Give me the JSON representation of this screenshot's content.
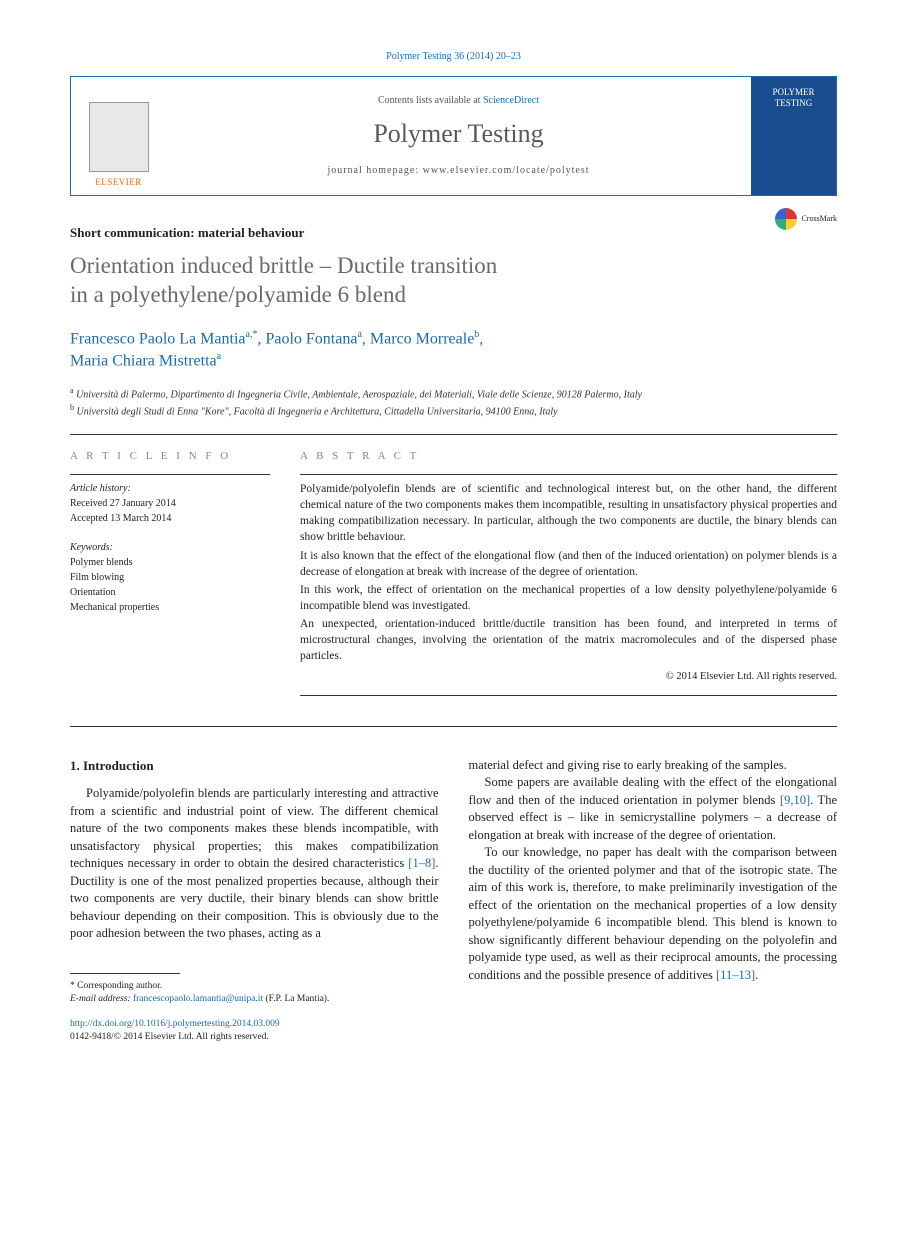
{
  "journal_ref": "Polymer Testing 36 (2014) 20–23",
  "masthead": {
    "publisher": "ELSEVIER",
    "contents_prefix": "Contents lists available at ",
    "contents_link": "ScienceDirect",
    "journal_name": "Polymer Testing",
    "homepage": "journal homepage: www.elsevier.com/locate/polytest",
    "cover_label": "POLYMER TESTING"
  },
  "section_tag": "Short communication: material behaviour",
  "title_line1": "Orientation induced brittle – Ductile transition",
  "title_line2": "in a polyethylene/polyamide 6 blend",
  "crossmark": "CrossMark",
  "authors": {
    "a1": "Francesco Paolo La Mantia",
    "a1_sup": "a,*",
    "a2": "Paolo Fontana",
    "a2_sup": "a",
    "a3": "Marco Morreale",
    "a3_sup": "b",
    "a4": "Maria Chiara Mistretta",
    "a4_sup": "a"
  },
  "affil": {
    "a": "Università di Palermo, Dipartimento di Ingegneria Civile, Ambientale, Aerospaziale, dei Materiali, Viale delle Scienze, 90128 Palermo, Italy",
    "b": "Università degli Studi di Enna \"Kore\", Facoltà di Ingegneria e Architettura, Cittadella Universitaria, 94100 Enna, Italy"
  },
  "info": {
    "heading": "A R T I C L E   I N F O",
    "history_label": "Article history:",
    "received": "Received 27 January 2014",
    "accepted": "Accepted 13 March 2014",
    "keywords_label": "Keywords:",
    "k1": "Polymer blends",
    "k2": "Film blowing",
    "k3": "Orientation",
    "k4": "Mechanical properties"
  },
  "abstract": {
    "heading": "A B S T R A C T",
    "p1": "Polyamide/polyolefin blends are of scientific and technological interest but, on the other hand, the different chemical nature of the two components makes them incompatible, resulting in unsatisfactory physical properties and making compatibilization necessary. In particular, although the two components are ductile, the binary blends can show brittle behaviour.",
    "p2": "It is also known that the effect of the elongational flow (and then of the induced orientation) on polymer blends is a decrease of elongation at break with increase of the degree of orientation.",
    "p3": "In this work, the effect of orientation on the mechanical properties of a low density polyethylene/polyamide 6 incompatible blend was investigated.",
    "p4": "An unexpected, orientation-induced brittle/ductile transition has been found, and interpreted in terms of microstructural changes, involving the orientation of the matrix macromolecules and of the dispersed phase particles.",
    "copyright": "© 2014 Elsevier Ltd. All rights reserved."
  },
  "body": {
    "intro_heading": "1. Introduction",
    "col1_p1": "Polyamide/polyolefin blends are particularly interesting and attractive from a scientific and industrial point of view. The different chemical nature of the two components makes these blends incompatible, with unsatisfactory physical properties; this makes compatibilization techniques necessary in order to obtain the desired characteristics ",
    "col1_cite1": "[1–8]",
    "col1_p1b": ". Ductility is one of the most penalized properties because, although their two components are very ductile, their binary blends can show brittle behaviour depending on their composition. This is obviously due to the poor adhesion between the two phases, acting as a",
    "col2_p1": "material defect and giving rise to early breaking of the samples.",
    "col2_p2a": "Some papers are available dealing with the effect of the elongational flow and then of the induced orientation in polymer blends ",
    "col2_cite1": "[9,10]",
    "col2_p2b": ". The observed effect is – like in semicrystalline polymers – a decrease of elongation at break with increase of the degree of orientation.",
    "col2_p3a": "To our knowledge, no paper has dealt with the comparison between the ductility of the oriented polymer and that of the isotropic state. The aim of this work is, therefore, to make preliminarily investigation of the effect of the orientation on the mechanical properties of a low density polyethylene/polyamide 6 incompatible blend. This blend is known to show significantly different behaviour depending on the polyolefin and polyamide type used, as well as their reciprocal amounts, the processing conditions and the possible presence of additives ",
    "col2_cite2": "[11–13]",
    "col2_p3b": "."
  },
  "footnote": {
    "corr": "* Corresponding author.",
    "email_label": "E-mail address: ",
    "email": "francescopaolo.lamantia@unipa.it",
    "email_suffix": " (F.P. La Mantia)."
  },
  "doi": {
    "link": "http://dx.doi.org/10.1016/j.polymertesting.2014.03.009",
    "issn": "0142-9418/© 2014 Elsevier Ltd. All rights reserved."
  }
}
